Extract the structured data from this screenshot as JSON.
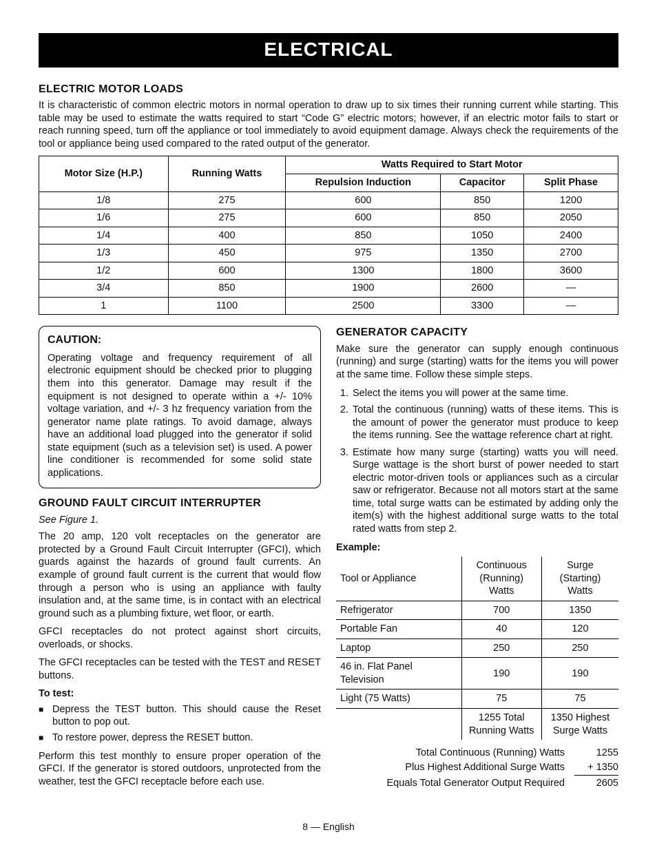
{
  "page_title": "ELECTRICAL",
  "section_motor_loads": {
    "heading": "ELECTRIC MOTOR LOADS",
    "intro": "It is characteristic of common electric motors in normal operation to draw up to six times their running current while starting. This table may be used to estimate the watts required to start “Code G” electric motors; however, if an electric motor fails to start or reach running speed, turn off the appliance or tool immediately to avoid equipment damage. Always check the requirements of the tool or appliance being used compared to the rated output of the generator."
  },
  "motor_table": {
    "headers": {
      "motor_size": "Motor Size (H.P.)",
      "running_watts": "Running Watts",
      "watts_start": "Watts Required to Start Motor",
      "repulsion": "Repulsion Induction",
      "capacitor": "Capacitor",
      "split_phase": "Split Phase"
    },
    "rows": [
      {
        "size": "1/8",
        "running": "275",
        "rep": "600",
        "cap": "850",
        "split": "1200"
      },
      {
        "size": "1/6",
        "running": "275",
        "rep": "600",
        "cap": "850",
        "split": "2050"
      },
      {
        "size": "1/4",
        "running": "400",
        "rep": "850",
        "cap": "1050",
        "split": "2400"
      },
      {
        "size": "1/3",
        "running": "450",
        "rep": "975",
        "cap": "1350",
        "split": "2700"
      },
      {
        "size": "1/2",
        "running": "600",
        "rep": "1300",
        "cap": "1800",
        "split": "3600"
      },
      {
        "size": "3/4",
        "running": "850",
        "rep": "1900",
        "cap": "2600",
        "split": "—"
      },
      {
        "size": "1",
        "running": "1100",
        "rep": "2500",
        "cap": "3300",
        "split": "—"
      }
    ]
  },
  "caution": {
    "heading": "CAUTION:",
    "body": "Operating voltage and frequency requirement of all electronic equipment should be checked prior to plugging them into this generator. Damage may result if the equipment is not designed to operate within a +/- 10% voltage variation, and +/- 3 hz frequency variation from the generator name plate ratings. To avoid damage, always have an additional load plugged into the generator if solid state equipment (such as a television set) is used. A power line conditioner is recommended for some solid state applications."
  },
  "gfci": {
    "heading": "GROUND FAULT CIRCUIT INTERRUPTER",
    "fig_ref": "See Figure 1.",
    "p1": "The 20 amp, 120 volt receptacles on the generator are protected by a Ground Fault Circuit Interrupter (GFCI), which guards against the hazards of ground fault currents. An example of ground fault current is the current that would flow through a person who is using an appliance with faulty insulation and, at the same time, is in contact with an electrical ground such as a plumbing fixture, wet floor, or earth.",
    "p2": "GFCI receptacles do not protect against short circuits, overloads, or shocks.",
    "p3": "The GFCI receptacles can be tested with the TEST and RESET buttons.",
    "to_test_label": "To test:",
    "bullets": [
      "Depress the TEST button. This should cause the Reset button to pop out.",
      "To restore power, depress the RESET button."
    ],
    "p4": "Perform this test monthly to ensure proper operation of the GFCI. If the generator is stored outdoors, unprotected from the weather, test the GFCI receptacle before each use."
  },
  "capacity": {
    "heading": "GENERATOR CAPACITY",
    "intro": "Make sure the generator can supply enough continuous (running) and surge (starting) watts for the items you will power at the same time. Follow these simple steps.",
    "steps": [
      "Select the items you will power at the same time.",
      "Total the continuous (running) watts of these items. This is the amount of power the generator must produce to keep the items running. See the wattage reference chart at right.",
      "Estimate how many surge (starting) watts you will need. Surge wattage is the short burst of power needed to start electric motor-driven tools or appliances such as a circular saw or refrigerator. Because not all motors start at the same time, total surge watts can be estimated by adding only the item(s) with the highest additional surge watts to the total rated watts from step 2."
    ],
    "example_label": "Example:"
  },
  "example_table": {
    "headers": {
      "tool": "Tool or Appliance",
      "running": "Continuous\n(Running) Watts",
      "surge": "Surge\n(Starting) Watts"
    },
    "rows": [
      {
        "tool": "Refrigerator",
        "running": "700",
        "surge": "1350"
      },
      {
        "tool": "Portable Fan",
        "running": "40",
        "surge": "120"
      },
      {
        "tool": "Laptop",
        "running": "250",
        "surge": "250"
      },
      {
        "tool": "46 in. Flat Panel Television",
        "running": "190",
        "surge": "190"
      },
      {
        "tool": "Light (75 Watts)",
        "running": "75",
        "surge": "75"
      }
    ],
    "footer": {
      "running_total": "1255 Total\nRunning Watts",
      "surge_total": "1350 Highest\nSurge Watts"
    }
  },
  "summary": {
    "line1_label": "Total Continuous (Running) Watts",
    "line1_val": "1255",
    "line2_label": "Plus Highest Additional Surge Watts",
    "line2_val": "+ 1350",
    "line3_label": "Equals Total Generator Output Required",
    "line3_val": "2605"
  },
  "footer": "8 — English"
}
